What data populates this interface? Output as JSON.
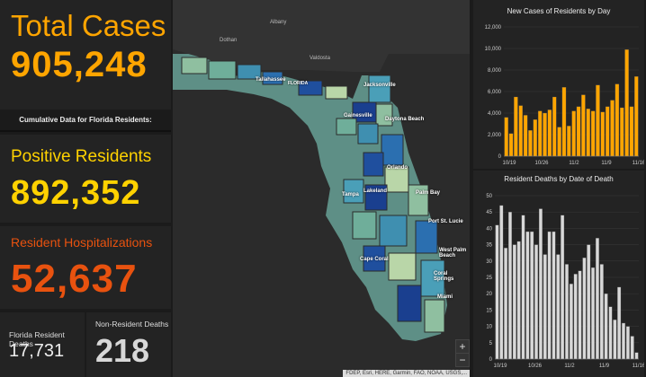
{
  "total_cases": {
    "label": "Total Cases",
    "value": "905,248"
  },
  "cumulative_label": "Cumulative Data for Florida Residents:",
  "positive": {
    "label": "Positive Residents",
    "value": "892,352"
  },
  "hospitalizations": {
    "label": "Resident Hospitalizations",
    "value": "52,637"
  },
  "fl_deaths": {
    "label": "Florida Resident Deaths",
    "value": "17,731"
  },
  "nonres_deaths": {
    "label": "Non-Resident Deaths",
    "value": "218"
  },
  "map": {
    "labels": [
      "Albany",
      "Dothan",
      "Valdosta"
    ],
    "cities": [
      "Tallahassee",
      "FLORIDA",
      "Jacksonville",
      "Gainesville",
      "Daytona Beach",
      "Orlando",
      "Tampa",
      "Lakeland",
      "Palm Bay",
      "Port St. Lucie",
      "Cape Coral",
      "West Palm Beach",
      "Coral Springs",
      "Miami"
    ],
    "zoom_in": "+",
    "zoom_out": "−",
    "attribution": "FDEP, Esri, HERE, Garmin, FAO, NOAA, USGS,..."
  },
  "colors": {
    "orange": "#ffa500",
    "yellow": "#ffd200",
    "red": "#e8520f",
    "bars_new": "#ffa500",
    "bars_deaths": "#d8d8d8"
  },
  "chart_data": [
    {
      "type": "bar",
      "title": "New Cases of Residents by Day",
      "xlabel": "",
      "ylabel": "",
      "ylim": [
        0,
        12000
      ],
      "yticks": [
        "12,000",
        "10,000",
        "8,000",
        "6,000",
        "4,000",
        "2,000",
        "0"
      ],
      "xticks": [
        "10/19",
        "10/26",
        "11/2",
        "11/9",
        "11/16"
      ],
      "values": [
        3600,
        2100,
        5500,
        4700,
        3800,
        2400,
        3400,
        4200,
        4000,
        4300,
        5500,
        2700,
        6400,
        2800,
        4200,
        4600,
        5700,
        4400,
        4200,
        6600,
        4100,
        4600,
        5200,
        6700,
        4500,
        9900,
        4600,
        7400
      ]
    },
    {
      "type": "bar",
      "title": "Resident Deaths by Date of Death",
      "xlabel": "",
      "ylabel": "",
      "ylim": [
        0,
        50
      ],
      "yticks": [
        "50",
        "45",
        "40",
        "35",
        "30",
        "25",
        "20",
        "15",
        "10",
        "5",
        "0"
      ],
      "xticks": [
        "10/19",
        "10/26",
        "11/2",
        "11/9",
        "11/16"
      ],
      "values": [
        41,
        47,
        34,
        45,
        35,
        36,
        44,
        39,
        39,
        35,
        46,
        32,
        39,
        39,
        32,
        44,
        29,
        23,
        26,
        27,
        31,
        35,
        28,
        37,
        29,
        20,
        16,
        12,
        22,
        11,
        10,
        7,
        2
      ]
    }
  ]
}
